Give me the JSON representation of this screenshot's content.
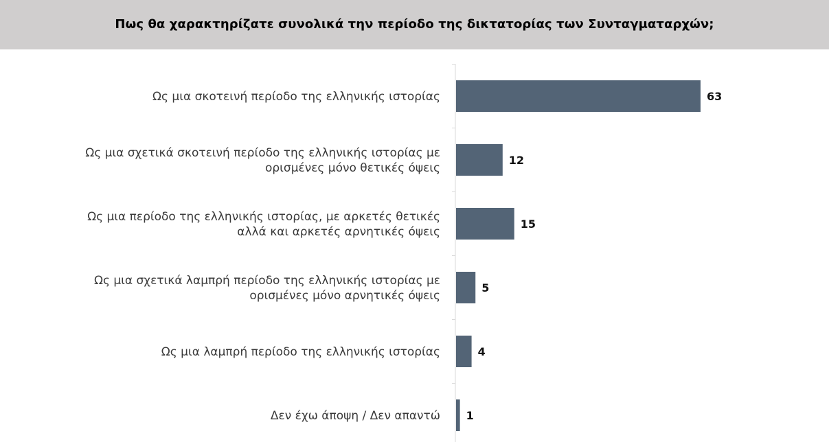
{
  "title": "Πως θα χαρακτηρίζατε συνολικά την περίοδο της δικτατορίας των Συνταγματαρχών;",
  "colors": {
    "header_background": "#d0cece",
    "bar": "#536476",
    "axis": "#d9d9d9"
  },
  "chart_data": {
    "type": "bar",
    "orientation": "horizontal",
    "title": "Πως θα χαρακτηρίζατε συνολικά την περίοδο της δικτατορίας των Συνταγματαρχών;",
    "categories": [
      [
        "Ως μια σκοτεινή περίοδο της ελληνικής ιστορίας"
      ],
      [
        "Ως μια σχετικά σκοτεινή περίοδο της ελληνικής ιστορίας με",
        "ορισμένες μόνο θετικές όψεις"
      ],
      [
        "Ως μια περίοδο της ελληνικής ιστορίας, με αρκετές θετικές",
        "αλλά και αρκετές αρνητικές όψεις"
      ],
      [
        "Ως μια σχετικά λαμπρή περίοδο της ελληνικής ιστορίας με",
        "ορισμένες μόνο αρνητικές όψεις"
      ],
      [
        "Ως μια λαμπρή περίοδο της ελληνικής ιστορίας"
      ],
      [
        "Δεν έχω άποψη / Δεν απαντώ"
      ]
    ],
    "values": [
      63,
      12,
      15,
      5,
      4,
      1
    ],
    "data_labels": [
      "63",
      "12",
      "15",
      "5",
      "4",
      "1"
    ],
    "xlabel": "",
    "ylabel": "",
    "xlim": [
      0,
      63
    ],
    "grid": false,
    "legend": "none"
  }
}
